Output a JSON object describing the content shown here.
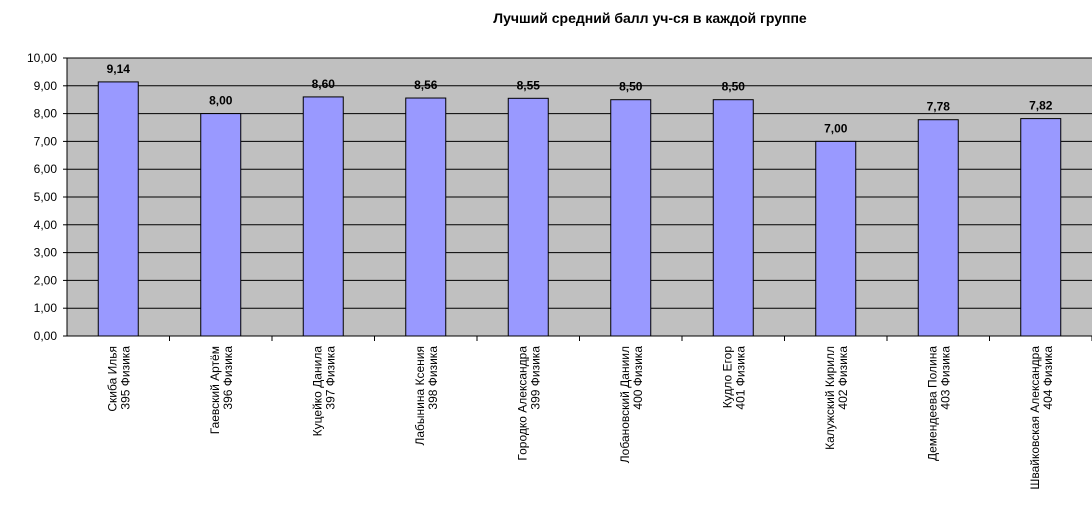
{
  "chart_data": {
    "type": "bar",
    "title": "Лучший средний балл уч-ся в каждой группе",
    "xlabel": "",
    "ylabel": "",
    "ylim": [
      0,
      10
    ],
    "ytick_step": 1,
    "ytick_labels": [
      "0,00",
      "1,00",
      "2,00",
      "3,00",
      "4,00",
      "5,00",
      "6,00",
      "7,00",
      "8,00",
      "9,00",
      "10,00"
    ],
    "grid": true,
    "legend": "none",
    "colors": {
      "plot_bg": "#c0c0c0",
      "bar_fill": "#9999ff",
      "bar_stroke": "#000000",
      "axis": "#000000"
    },
    "categories": [
      [
        "Скиба Илья",
        "395 Физика"
      ],
      [
        "Гаевский Артём",
        "396 Физика"
      ],
      [
        "Куцейко Данила",
        "397 Физика"
      ],
      [
        "Лабынина Ксения",
        "398 Физика"
      ],
      [
        "Городко Александра",
        "399 Физика"
      ],
      [
        "Лобановский Даниил",
        "400 Физика"
      ],
      [
        "Кудло Егор",
        "401 Физика"
      ],
      [
        "Калужский Кирилл",
        "402 Физика"
      ],
      [
        "Демендеева Полина",
        "403 Физика"
      ],
      [
        "Швайковская Александра",
        "404 Физика"
      ]
    ],
    "values": [
      9.14,
      8.0,
      8.6,
      8.56,
      8.55,
      8.5,
      8.5,
      7.0,
      7.78,
      7.82
    ],
    "data_labels": [
      "9,14",
      "8,00",
      "8,60",
      "8,56",
      "8,55",
      "8,50",
      "8,50",
      "7,00",
      "7,78",
      "7,82"
    ]
  }
}
